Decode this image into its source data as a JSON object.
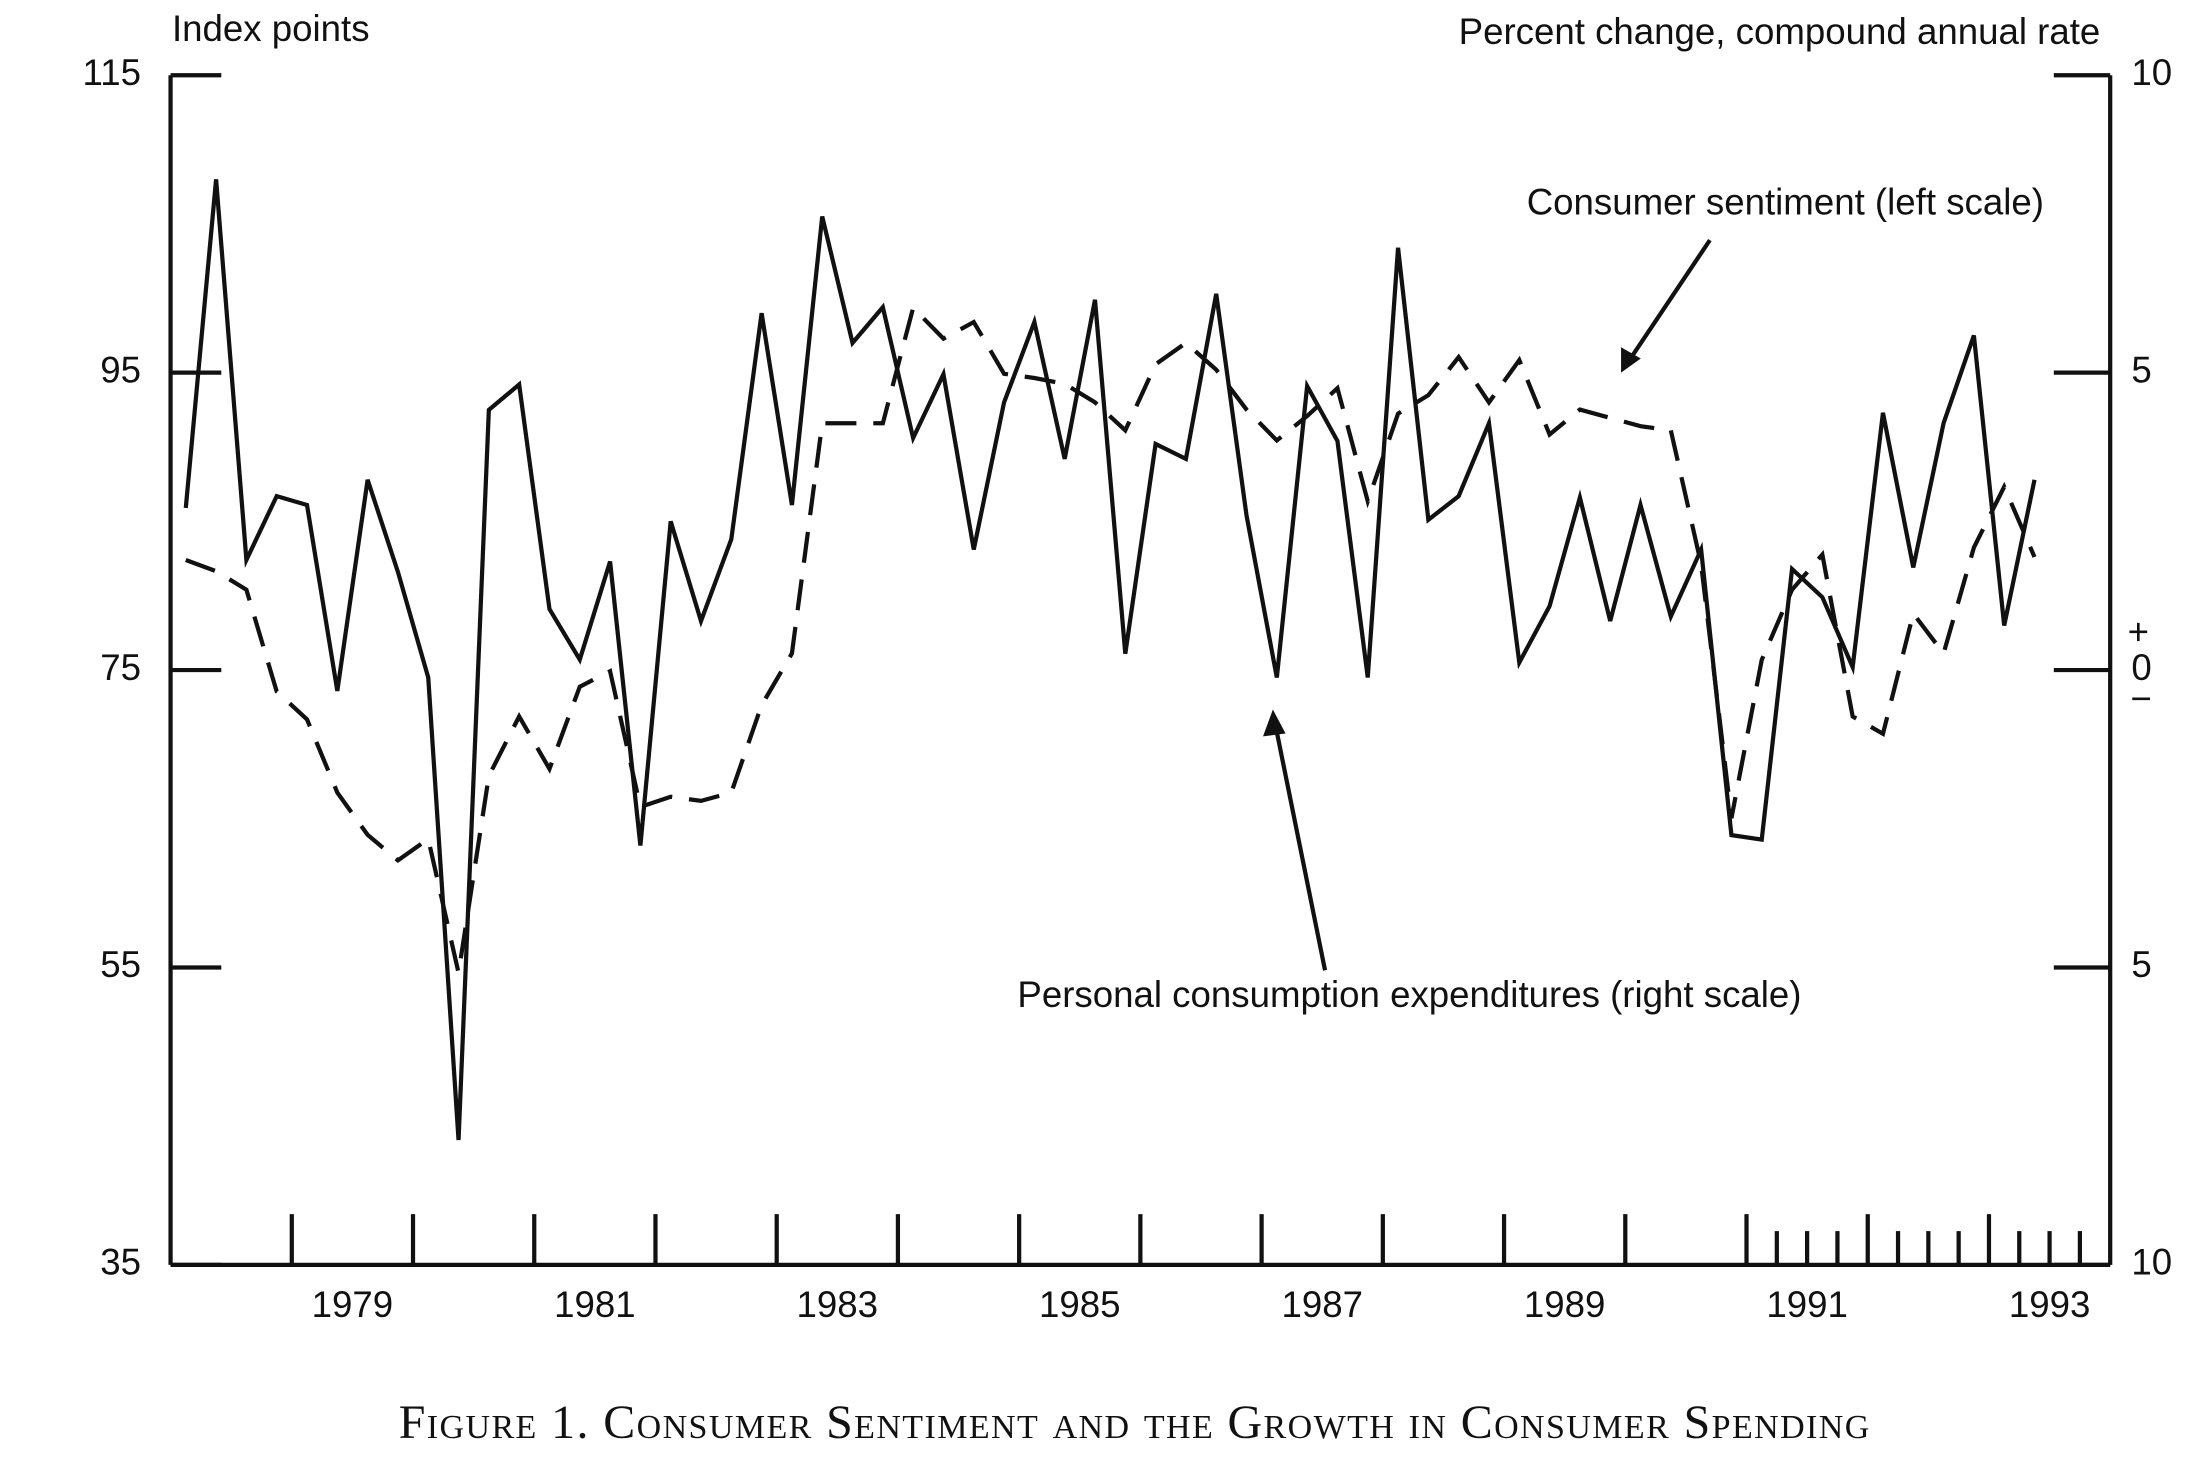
{
  "chart_data": {
    "type": "line",
    "caption": "Figure 1. Consumer Sentiment and the Growth in Consumer Spending",
    "ylabel": "Index points",
    "y2label": "Percent change, compound annual rate",
    "y2_zero_signs": [
      "+",
      "−"
    ],
    "annotations": [
      "Consumer sentiment (left scale)",
      "Personal consumption expenditures (right scale)"
    ],
    "xlim": [
      1978,
      1994
    ],
    "xticks": [
      {
        "value": 1979.5,
        "label": "1979"
      },
      {
        "value": 1981.5,
        "label": "1981"
      },
      {
        "value": 1983.5,
        "label": "1983"
      },
      {
        "value": 1985.5,
        "label": "1985"
      },
      {
        "value": 1987.5,
        "label": "1987"
      },
      {
        "value": 1989.5,
        "label": "1989"
      },
      {
        "value": 1991.5,
        "label": "1991"
      },
      {
        "value": 1993.5,
        "label": "1993"
      }
    ],
    "xtick_marks": [
      1979,
      1980,
      1981,
      1982,
      1983,
      1984,
      1985,
      1986,
      1987,
      1988,
      1989,
      1990,
      1991,
      1992,
      1993
    ],
    "xminor_ticks": [
      1991.25,
      1991.5,
      1991.75,
      1992.25,
      1992.5,
      1992.75,
      1993.25,
      1993.5,
      1993.75
    ],
    "ylim": [
      35,
      115
    ],
    "yticks": [
      35,
      55,
      75,
      95,
      115
    ],
    "y2lim": [
      -10,
      10
    ],
    "y2ticks": [
      {
        "value": -10,
        "label": "10"
      },
      {
        "value": -5,
        "label": "5"
      },
      0,
      5,
      10
    ],
    "x": [
      1978.125,
      1978.375,
      1978.625,
      1978.875,
      1979.125,
      1979.375,
      1979.625,
      1979.875,
      1980.125,
      1980.375,
      1980.625,
      1980.875,
      1981.125,
      1981.375,
      1981.625,
      1981.875,
      1982.125,
      1982.375,
      1982.625,
      1982.875,
      1983.125,
      1983.375,
      1983.625,
      1983.875,
      1984.125,
      1984.375,
      1984.625,
      1984.875,
      1985.125,
      1985.375,
      1985.625,
      1985.875,
      1986.125,
      1986.375,
      1986.625,
      1986.875,
      1987.125,
      1987.375,
      1987.625,
      1987.875,
      1988.125,
      1988.375,
      1988.625,
      1988.875,
      1989.125,
      1989.375,
      1989.625,
      1989.875,
      1990.125,
      1990.375,
      1990.625,
      1990.875,
      1991.125,
      1991.375,
      1991.625,
      1991.875,
      1992.125,
      1992.375,
      1992.625,
      1992.875,
      1993.125,
      1993.375
    ],
    "series": [
      {
        "name": "Consumer sentiment",
        "color": "#111111",
        "line_style": "solid",
        "axis": "y",
        "values": [
          85.9,
          108,
          82.4,
          86.7,
          86.1,
          73.6,
          87.8,
          81.6,
          74.5,
          43.4,
          92.5,
          94.2,
          79.1,
          75.7,
          82.3,
          63.2,
          85,
          78.3,
          83.8,
          99,
          86.1,
          105.5,
          97,
          99.4,
          90.6,
          94.9,
          83.1,
          93,
          98.4,
          89.2,
          99.9,
          76.1,
          90.2,
          89.2,
          100.3,
          85.4,
          74.5,
          94.1,
          90.4,
          74.5,
          103.4,
          85.1,
          86.7,
          91.6,
          75.5,
          79.3,
          86.6,
          78.3,
          86.1,
          78.6,
          83.1,
          63.9,
          63.6,
          81.8,
          79.9,
          75.2,
          92.3,
          81.9,
          91.6,
          97.5,
          78,
          87.8
        ]
      },
      {
        "name": "Personal consumption expenditures",
        "color": "#111111",
        "line_style": "dashed",
        "axis": "y2",
        "values": [
          1.85,
          1.66,
          1.35,
          -0.36,
          -0.83,
          -2.06,
          -2.77,
          -3.2,
          -2.84,
          -5.09,
          -1.78,
          -0.78,
          -1.66,
          -0.28,
          -0.02,
          -2.3,
          -2.13,
          -2.2,
          -2.06,
          -0.59,
          0.28,
          4.15,
          4.15,
          4.15,
          6.09,
          5.57,
          5.85,
          4.98,
          4.91,
          4.81,
          4.5,
          4.03,
          5.14,
          5.5,
          5.05,
          4.38,
          3.86,
          4.27,
          4.74,
          2.84,
          4.31,
          4.62,
          5.26,
          4.5,
          5.21,
          3.96,
          4.38,
          4.24,
          4.1,
          4.03,
          1.78,
          -2.49,
          0.17,
          1.35,
          1.94,
          -0.78,
          -1.07,
          0.95,
          0.28,
          2.06,
          3.08,
          1.9
        ]
      }
    ]
  }
}
